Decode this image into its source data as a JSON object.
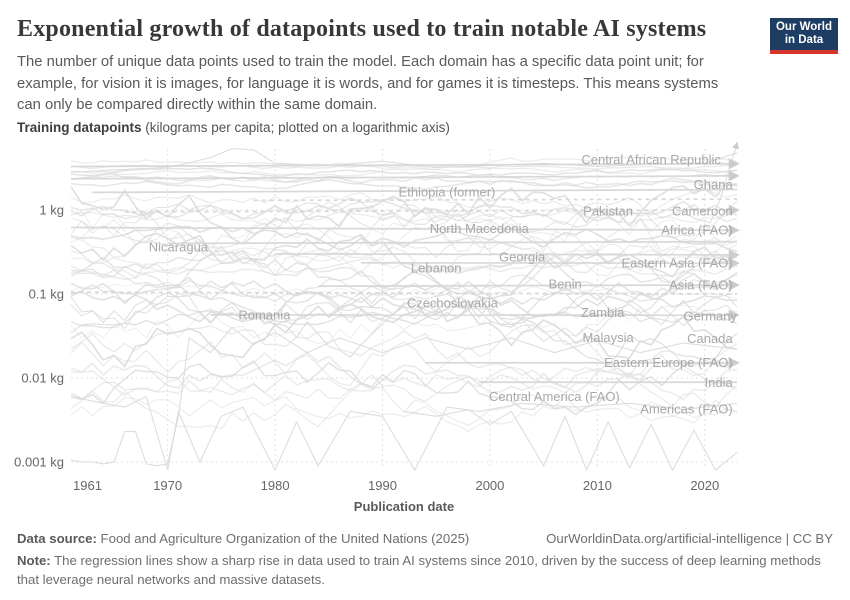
{
  "header": {
    "title": "Exponential growth of datapoints used to train notable AI systems",
    "subtitle": "The number of unique data points used to train the model. Each domain has a specific data point unit; for example, for vision it is images, for language it is words, and for games it is timesteps. This means systems can only be compared directly within the same domain.",
    "logo_line1": "Our World",
    "logo_line2": "in Data",
    "logo_bg": "#1d3d63",
    "logo_bar": "#d8352e"
  },
  "axis_heading": {
    "bold": "Training datapoints",
    "rest": " (kilograms per capita; plotted on a logarithmic axis)"
  },
  "chart_data": {
    "type": "line",
    "title": "Exponential growth of datapoints used to train notable AI systems",
    "xlabel": "Publication date",
    "ylabel": "Training datapoints (kilograms per capita)",
    "y_scale": "log",
    "grid": "dashed",
    "x_range": [
      1961,
      2023
    ],
    "x_ticks": [
      1961,
      1970,
      1980,
      1990,
      2000,
      2010,
      2020
    ],
    "y_ticks": [
      {
        "v": 1,
        "label": "1 kg"
      },
      {
        "v": 0.1,
        "label": "0.1 kg"
      },
      {
        "v": 0.01,
        "label": "0.01 kg"
      },
      {
        "v": 0.001,
        "label": "0.001 kg"
      }
    ],
    "line_color": "#d9d9d9",
    "trend_color": "#d6d6d6",
    "grid_color": "#e0e0e0",
    "label_color": "#a8a8a8",
    "tick_color": "#666666",
    "series_labels": [
      {
        "name": "Central African Republic",
        "year": 2021.5,
        "value": 4.0,
        "anchor": "end"
      },
      {
        "name": "Ghana",
        "year": 2022.6,
        "value": 2.0,
        "anchor": "end"
      },
      {
        "name": "Ethiopia (former)",
        "year": 1996,
        "value": 1.63,
        "anchor": "middle"
      },
      {
        "name": "Pakistan",
        "year": 2011,
        "value": 0.97,
        "anchor": "middle"
      },
      {
        "name": "Cameroon",
        "year": 2022.6,
        "value": 0.97,
        "anchor": "end"
      },
      {
        "name": "North Macedonia",
        "year": 1999,
        "value": 0.6,
        "anchor": "middle"
      },
      {
        "name": "Africa (FAO)",
        "year": 2022.6,
        "value": 0.58,
        "anchor": "end"
      },
      {
        "name": "Nicaragua",
        "year": 1971,
        "value": 0.362,
        "anchor": "middle"
      },
      {
        "name": "Georgia",
        "year": 2003,
        "value": 0.275,
        "anchor": "middle"
      },
      {
        "name": "Eastern Asia (FAO)",
        "year": 2022.6,
        "value": 0.233,
        "anchor": "end"
      },
      {
        "name": "Lebanon",
        "year": 1995,
        "value": 0.205,
        "anchor": "middle"
      },
      {
        "name": "Benin",
        "year": 2007,
        "value": 0.131,
        "anchor": "middle"
      },
      {
        "name": "Asia (FAO)",
        "year": 2022.6,
        "value": 0.128,
        "anchor": "end"
      },
      {
        "name": "Czechoslovakia",
        "year": 1996.5,
        "value": 0.078,
        "anchor": "middle"
      },
      {
        "name": "Zambia",
        "year": 2010.5,
        "value": 0.06,
        "anchor": "middle"
      },
      {
        "name": "Germany",
        "year": 2023,
        "value": 0.055,
        "anchor": "end"
      },
      {
        "name": "Romania",
        "year": 1979,
        "value": 0.056,
        "anchor": "middle"
      },
      {
        "name": "Malaysia",
        "year": 2011,
        "value": 0.0305,
        "anchor": "middle"
      },
      {
        "name": "Canada",
        "year": 2022.6,
        "value": 0.0295,
        "anchor": "end"
      },
      {
        "name": "Eastern Europe (FAO)",
        "year": 2022.6,
        "value": 0.0152,
        "anchor": "end"
      },
      {
        "name": "India",
        "year": 2022.6,
        "value": 0.0089,
        "anchor": "end"
      },
      {
        "name": "Central America (FAO)",
        "year": 2006,
        "value": 0.006,
        "anchor": "middle"
      },
      {
        "name": "Americas (FAO)",
        "year": 2022.6,
        "value": 0.00425,
        "anchor": "end"
      }
    ],
    "trend_lines": [
      {
        "from": [
          1961,
          3.3
        ],
        "to": [
          2023,
          3.55
        ],
        "dashed": false,
        "arrow": true
      },
      {
        "from": [
          1961,
          2.35
        ],
        "to": [
          2023,
          2.55
        ],
        "dashed": false,
        "arrow": true
      },
      {
        "from": [
          1963,
          1.62
        ],
        "to": [
          2023,
          1.75
        ],
        "dashed": false,
        "arrow": false
      },
      {
        "from": [
          1978,
          1.3
        ],
        "to": [
          2023,
          1.35
        ],
        "dashed": true,
        "arrow": false
      },
      {
        "from": [
          1966,
          0.95
        ],
        "to": [
          2023,
          1.0
        ],
        "dashed": true,
        "arrow": true
      },
      {
        "from": [
          1961,
          0.62
        ],
        "to": [
          2023,
          0.575
        ],
        "dashed": false,
        "arrow": true
      },
      {
        "from": [
          1970,
          0.4
        ],
        "to": [
          2023,
          0.42
        ],
        "dashed": false,
        "arrow": false
      },
      {
        "from": [
          1980,
          0.3
        ],
        "to": [
          2023,
          0.292
        ],
        "dashed": false,
        "arrow": true
      },
      {
        "from": [
          1988,
          0.235
        ],
        "to": [
          2023,
          0.233
        ],
        "dashed": false,
        "arrow": true
      },
      {
        "from": [
          1984,
          0.124
        ],
        "to": [
          2023,
          0.128
        ],
        "dashed": false,
        "arrow": true
      },
      {
        "from": [
          1961,
          0.105
        ],
        "to": [
          2023,
          0.1
        ],
        "dashed": true,
        "arrow": false
      },
      {
        "from": [
          1974,
          0.0565
        ],
        "to": [
          2023,
          0.056
        ],
        "dashed": false,
        "arrow": true
      },
      {
        "from": [
          1994,
          0.0152
        ],
        "to": [
          2023,
          0.0152
        ],
        "dashed": false,
        "arrow": true
      },
      {
        "from": [
          1999,
          0.0089
        ],
        "to": [
          2023,
          0.0089
        ],
        "dashed": false,
        "arrow": false
      }
    ],
    "special_series": [
      {
        "name": "bottom-bump-line",
        "arrow": false,
        "points": [
          [
            1961,
            0.00105
          ],
          [
            1962,
            0.001
          ],
          [
            1963,
            0.001
          ],
          [
            1964,
            0.00095
          ],
          [
            1965,
            0.001
          ],
          [
            1966,
            0.0023
          ],
          [
            1967,
            0.0023
          ],
          [
            1968,
            0.00095
          ],
          [
            1969,
            0.0009
          ],
          [
            1970,
            0.00095
          ],
          [
            1971,
            0.0035
          ],
          [
            1972,
            0.03
          ],
          [
            1974,
            0.02
          ],
          [
            1976,
            0.04
          ],
          [
            1978,
            0.025
          ],
          [
            1980,
            0.035
          ],
          [
            1983,
            0.02
          ],
          [
            1986,
            0.03
          ],
          [
            1990,
            0.02
          ],
          [
            1994,
            0.03
          ],
          [
            1998,
            0.022
          ],
          [
            2002,
            0.03
          ],
          [
            2006,
            0.02
          ],
          [
            2010,
            0.028
          ],
          [
            2014,
            0.02
          ],
          [
            2018,
            0.026
          ],
          [
            2023,
            0.022
          ]
        ]
      },
      {
        "name": "deep-dip-line-1",
        "arrow": false,
        "points": [
          [
            1992,
            0.004
          ],
          [
            1995,
            0.0035
          ],
          [
            1998,
            0.0042
          ],
          [
            2000,
            0.0028
          ],
          [
            2002,
            0.004
          ],
          [
            2005,
            0.0009
          ],
          [
            2007,
            0.0035
          ],
          [
            2009,
            0.0008
          ],
          [
            2011,
            0.003
          ],
          [
            2013,
            0.00085
          ],
          [
            2015,
            0.0028
          ],
          [
            2017,
            0.0008
          ],
          [
            2019,
            0.0024
          ],
          [
            2021,
            0.0008
          ],
          [
            2023,
            0.0013
          ]
        ]
      },
      {
        "name": "deep-dip-line-2",
        "arrow": false,
        "points": [
          [
            1961,
            0.006
          ],
          [
            1964,
            0.005
          ],
          [
            1966,
            0.0045
          ],
          [
            1968,
            0.006
          ],
          [
            1970,
            0.0008
          ],
          [
            1971,
            0.004
          ],
          [
            1973,
            0.001
          ],
          [
            1975,
            0.0035
          ],
          [
            1977,
            0.0045
          ],
          [
            1980,
            0.0008
          ],
          [
            1982,
            0.003
          ],
          [
            1984,
            0.0009
          ],
          [
            1987,
            0.004
          ],
          [
            1990,
            0.0035
          ],
          [
            1993,
            0.0008
          ],
          [
            1996,
            0.0045
          ],
          [
            1999,
            0.004
          ],
          [
            2003,
            0.005
          ],
          [
            2008,
            0.0045
          ],
          [
            2013,
            0.005
          ],
          [
            2018,
            0.0042
          ],
          [
            2023,
            0.005
          ]
        ]
      },
      {
        "name": "top-hump-line",
        "arrow": false,
        "points": [
          [
            1961,
            2.8
          ],
          [
            1965,
            3.0
          ],
          [
            1970,
            3.2
          ],
          [
            1974,
            4.2
          ],
          [
            1976,
            5.4
          ],
          [
            1978,
            5.2
          ],
          [
            1980,
            3.6
          ],
          [
            1985,
            3.4
          ],
          [
            1990,
            3.8
          ],
          [
            1995,
            3.2
          ],
          [
            2000,
            3.4
          ],
          [
            2005,
            3.6
          ],
          [
            2010,
            3.3
          ],
          [
            2015,
            3.5
          ],
          [
            2020,
            3.6
          ],
          [
            2023,
            4.8
          ]
        ]
      },
      {
        "name": "top-right-spike",
        "arrow": true,
        "points": [
          [
            2017,
            1.1
          ],
          [
            2019,
            0.8
          ],
          [
            2020.5,
            0.7
          ],
          [
            2021.5,
            1.4
          ],
          [
            2023,
            6.2
          ]
        ]
      }
    ],
    "background": {
      "seed": 20,
      "groups": [
        {
          "count": 7,
          "base": [
            0.28,
            0.58
          ],
          "vol": [
            0.015,
            0.05
          ]
        },
        {
          "count": 27,
          "base": [
            -1.4,
            0.18
          ],
          "vol": [
            0.05,
            0.2
          ]
        },
        {
          "count": 9,
          "base": [
            -2.45,
            -1.55
          ],
          "vol": [
            0.08,
            0.22
          ]
        }
      ]
    }
  },
  "footer": {
    "source_label": "Data source:",
    "source": " Food and Agriculture Organization of the United Nations (2025)",
    "link": "OurWorldinData.org/artificial-intelligence | CC BY",
    "note_label": "Note:",
    "note": " The regression lines show a sharp rise in data used to train AI systems since 2010, driven by the success of deep learning methods that leverage neural networks and massive datasets."
  }
}
